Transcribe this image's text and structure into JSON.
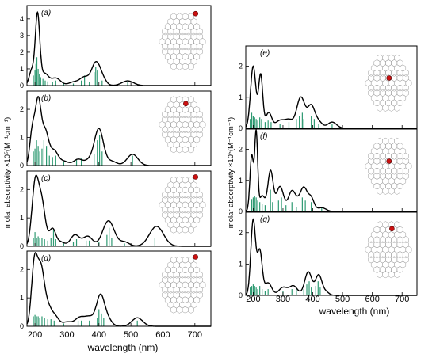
{
  "figure": {
    "left_column": {
      "xlabel": "wavelength (nm)",
      "ylabel": "molar absorptivity ×10⁵(M⁻¹cm⁻¹)",
      "x_tick_labels": [
        "200",
        "300",
        "400",
        "500",
        "600",
        "700"
      ]
    },
    "right_column": {
      "xlabel": "wavelength (nm)",
      "ylabel": "molar absorptivity ×10⁵(M⁻¹cm⁻¹)",
      "x_tick_labels": [
        "200",
        "300",
        "400",
        "500",
        "600",
        "700"
      ]
    }
  },
  "chart_data": [
    {
      "panel": "(a)",
      "type": "line",
      "xlim": [
        175,
        750
      ],
      "ylim": [
        0,
        4.8
      ],
      "yticks": [
        0,
        1,
        2,
        3,
        4
      ],
      "xlabel": "",
      "ylabel": "",
      "peaks": [
        [
          190,
          0.9,
          8
        ],
        [
          208,
          4.2,
          7
        ],
        [
          230,
          0.7,
          12
        ],
        [
          265,
          0.45,
          15
        ],
        [
          320,
          0.2,
          15
        ],
        [
          355,
          0.5,
          15
        ],
        [
          390,
          1.3,
          13
        ],
        [
          410,
          0.4,
          12
        ],
        [
          490,
          0.28,
          18
        ]
      ],
      "sticks": [
        [
          195,
          0.6
        ],
        [
          200,
          0.9
        ],
        [
          203,
          1.3
        ],
        [
          206,
          1.7
        ],
        [
          210,
          1.0
        ],
        [
          214,
          0.7
        ],
        [
          218,
          0.5
        ],
        [
          225,
          0.4
        ],
        [
          232,
          0.3
        ],
        [
          240,
          0.25
        ],
        [
          255,
          0.2
        ],
        [
          265,
          0.3
        ],
        [
          290,
          0.15
        ],
        [
          320,
          0.12
        ],
        [
          345,
          0.3
        ],
        [
          355,
          0.6
        ],
        [
          370,
          0.2
        ],
        [
          385,
          0.8
        ],
        [
          390,
          1.1
        ],
        [
          395,
          0.9
        ],
        [
          410,
          0.3
        ],
        [
          490,
          0.2
        ]
      ],
      "molecule": {
        "atom": "edge"
      }
    },
    {
      "panel": "(b)",
      "type": "line",
      "xlim": [
        175,
        750
      ],
      "ylim": [
        0,
        2.65
      ],
      "yticks": [
        0,
        1,
        2
      ],
      "xlabel": "",
      "ylabel": "",
      "peaks": [
        [
          192,
          1.2,
          8
        ],
        [
          210,
          2.2,
          9
        ],
        [
          232,
          1.2,
          11
        ],
        [
          260,
          0.5,
          12
        ],
        [
          290,
          0.15,
          15
        ],
        [
          335,
          0.22,
          14
        ],
        [
          370,
          0.18,
          14
        ],
        [
          400,
          1.3,
          14
        ],
        [
          440,
          0.15,
          15
        ],
        [
          505,
          0.4,
          17
        ]
      ],
      "sticks": [
        [
          195,
          0.5
        ],
        [
          200,
          0.6
        ],
        [
          205,
          0.9
        ],
        [
          210,
          0.7
        ],
        [
          215,
          0.5
        ],
        [
          222,
          0.6
        ],
        [
          228,
          0.9
        ],
        [
          236,
          0.7
        ],
        [
          245,
          0.35
        ],
        [
          255,
          0.3
        ],
        [
          265,
          0.35
        ],
        [
          290,
          0.15
        ],
        [
          330,
          0.2
        ],
        [
          345,
          0.25
        ],
        [
          385,
          0.4
        ],
        [
          395,
          0.9
        ],
        [
          402,
          1.1
        ],
        [
          410,
          0.5
        ],
        [
          505,
          0.35
        ]
      ],
      "molecule": {
        "atom": "outer"
      }
    },
    {
      "panel": "(c)",
      "type": "line",
      "xlim": [
        175,
        750
      ],
      "ylim": [
        0,
        2.65
      ],
      "yticks": [
        0,
        1,
        2
      ],
      "xlabel": "",
      "ylabel": "",
      "peaks": [
        [
          200,
          2.0,
          10
        ],
        [
          220,
          1.6,
          12
        ],
        [
          255,
          0.6,
          10
        ],
        [
          280,
          0.15,
          12
        ],
        [
          325,
          0.4,
          14
        ],
        [
          365,
          0.35,
          15
        ],
        [
          430,
          0.9,
          18
        ],
        [
          480,
          0.15,
          15
        ],
        [
          580,
          0.7,
          22
        ]
      ],
      "sticks": [
        [
          195,
          0.3
        ],
        [
          200,
          0.5
        ],
        [
          205,
          0.3
        ],
        [
          210,
          0.35
        ],
        [
          215,
          0.3
        ],
        [
          222,
          0.3
        ],
        [
          230,
          0.25
        ],
        [
          240,
          0.2
        ],
        [
          250,
          0.3
        ],
        [
          258,
          0.6
        ],
        [
          265,
          0.25
        ],
        [
          290,
          0.1
        ],
        [
          320,
          0.15
        ],
        [
          330,
          0.25
        ],
        [
          360,
          0.2
        ],
        [
          370,
          0.2
        ],
        [
          400,
          0.15
        ],
        [
          425,
          0.4
        ],
        [
          432,
          0.65
        ],
        [
          440,
          0.3
        ],
        [
          480,
          0.1
        ],
        [
          575,
          0.3
        ]
      ],
      "molecule": {
        "atom": "edge"
      }
    },
    {
      "panel": "(d)",
      "type": "line",
      "xlim": [
        175,
        750
      ],
      "ylim": [
        0,
        2.65
      ],
      "yticks": [
        0,
        1,
        2
      ],
      "xlabel": "",
      "ylabel": "",
      "peaks": [
        [
          198,
          2.1,
          9
        ],
        [
          218,
          2.0,
          11
        ],
        [
          240,
          0.6,
          11
        ],
        [
          262,
          0.35,
          12
        ],
        [
          300,
          0.15,
          15
        ],
        [
          340,
          0.3,
          15
        ],
        [
          370,
          0.3,
          14
        ],
        [
          405,
          1.1,
          13
        ],
        [
          430,
          0.2,
          12
        ],
        [
          520,
          0.3,
          17
        ]
      ],
      "sticks": [
        [
          195,
          0.35
        ],
        [
          200,
          0.4
        ],
        [
          205,
          0.35
        ],
        [
          210,
          0.35
        ],
        [
          215,
          0.3
        ],
        [
          222,
          0.35
        ],
        [
          230,
          0.3
        ],
        [
          240,
          0.25
        ],
        [
          250,
          0.25
        ],
        [
          260,
          0.2
        ],
        [
          290,
          0.1
        ],
        [
          335,
          0.2
        ],
        [
          345,
          0.2
        ],
        [
          370,
          0.2
        ],
        [
          395,
          0.3
        ],
        [
          400,
          0.6
        ],
        [
          408,
          0.45
        ],
        [
          415,
          0.3
        ],
        [
          520,
          0.2
        ]
      ],
      "molecule": {
        "atom": "edge"
      }
    },
    {
      "panel": "(e)",
      "type": "line",
      "xlim": [
        175,
        750
      ],
      "ylim": [
        0,
        2.65
      ],
      "yticks": [
        0,
        1,
        2
      ],
      "xlabel": "",
      "ylabel": "",
      "peaks": [
        [
          200,
          2.0,
          9
        ],
        [
          225,
          1.7,
          7
        ],
        [
          252,
          0.5,
          10
        ],
        [
          290,
          0.25,
          15
        ],
        [
          320,
          0.25,
          13
        ],
        [
          360,
          1.0,
          14
        ],
        [
          395,
          0.7,
          12
        ],
        [
          420,
          0.2,
          12
        ],
        [
          465,
          0.2,
          15
        ]
      ],
      "sticks": [
        [
          190,
          0.3
        ],
        [
          195,
          0.5
        ],
        [
          200,
          0.4
        ],
        [
          205,
          0.35
        ],
        [
          210,
          0.3
        ],
        [
          215,
          0.25
        ],
        [
          222,
          0.35
        ],
        [
          228,
          0.3
        ],
        [
          240,
          0.2
        ],
        [
          250,
          0.25
        ],
        [
          260,
          0.2
        ],
        [
          290,
          0.15
        ],
        [
          320,
          0.2
        ],
        [
          345,
          0.3
        ],
        [
          355,
          0.4
        ],
        [
          365,
          0.5
        ],
        [
          370,
          0.3
        ],
        [
          395,
          0.4
        ],
        [
          405,
          0.3
        ],
        [
          420,
          0.15
        ],
        [
          465,
          0.15
        ]
      ],
      "molecule": {
        "atom": "central"
      }
    },
    {
      "panel": "(f)",
      "type": "line",
      "xlim": [
        175,
        750
      ],
      "ylim": [
        0,
        2.65
      ],
      "yticks": [
        0,
        1,
        2
      ],
      "xlabel": "",
      "ylabel": "",
      "peaks": [
        [
          195,
          1.8,
          6
        ],
        [
          210,
          2.5,
          5
        ],
        [
          230,
          0.5,
          9
        ],
        [
          258,
          1.3,
          9
        ],
        [
          290,
          0.8,
          12
        ],
        [
          330,
          0.65,
          12
        ],
        [
          350,
          0.15,
          10
        ],
        [
          370,
          0.75,
          12
        ],
        [
          395,
          0.4,
          10
        ],
        [
          430,
          0.12,
          14
        ]
      ],
      "sticks": [
        [
          195,
          0.4
        ],
        [
          200,
          0.45
        ],
        [
          205,
          0.5
        ],
        [
          210,
          0.45
        ],
        [
          215,
          0.35
        ],
        [
          222,
          0.3
        ],
        [
          230,
          0.25
        ],
        [
          240,
          0.2
        ],
        [
          258,
          0.7
        ],
        [
          265,
          0.3
        ],
        [
          285,
          0.35
        ],
        [
          295,
          0.45
        ],
        [
          310,
          0.2
        ],
        [
          330,
          0.3
        ],
        [
          345,
          0.15
        ],
        [
          365,
          0.45
        ],
        [
          375,
          0.35
        ],
        [
          395,
          0.3
        ],
        [
          430,
          0.1
        ]
      ],
      "molecule": {
        "atom": "central"
      }
    },
    {
      "panel": "(g)",
      "type": "line",
      "xlim": [
        175,
        750
      ],
      "ylim": [
        0,
        2.65
      ],
      "yticks": [
        0,
        1,
        2
      ],
      "xlabel": "",
      "ylabel": "",
      "peaks": [
        [
          200,
          2.4,
          8
        ],
        [
          222,
          1.4,
          8
        ],
        [
          250,
          0.4,
          12
        ],
        [
          300,
          0.25,
          14
        ],
        [
          335,
          0.3,
          14
        ],
        [
          385,
          0.75,
          12
        ],
        [
          420,
          0.65,
          11
        ],
        [
          445,
          0.1,
          10
        ]
      ],
      "sticks": [
        [
          190,
          0.25
        ],
        [
          195,
          0.3
        ],
        [
          200,
          0.35
        ],
        [
          205,
          0.3
        ],
        [
          210,
          0.25
        ],
        [
          215,
          0.2
        ],
        [
          222,
          0.3
        ],
        [
          230,
          0.2
        ],
        [
          240,
          0.15
        ],
        [
          250,
          0.2
        ],
        [
          300,
          0.15
        ],
        [
          330,
          0.2
        ],
        [
          345,
          0.2
        ],
        [
          370,
          0.2
        ],
        [
          380,
          0.35
        ],
        [
          388,
          0.45
        ],
        [
          395,
          0.25
        ],
        [
          410,
          0.3
        ],
        [
          418,
          0.45
        ],
        [
          425,
          0.25
        ]
      ],
      "molecule": {
        "atom": "outer"
      }
    }
  ]
}
